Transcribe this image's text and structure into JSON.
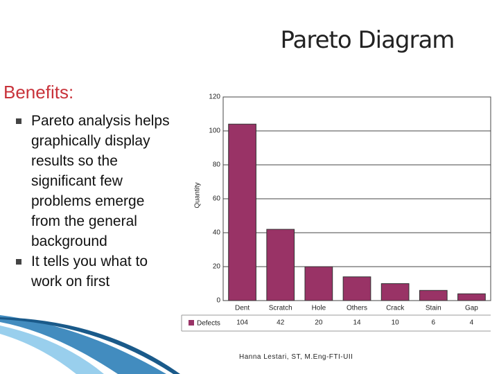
{
  "title": "Pareto Diagram",
  "heading": "Benefits:",
  "bullets": [
    "Pareto analysis helps graphically display results so the significant few problems emerge from the general background",
    "It tells you what to work on first"
  ],
  "footer": "Hanna Lestari, ST, M.Eng-FTI-UII",
  "chart_data": {
    "type": "bar",
    "y_label": "Quantity",
    "categories": [
      "Dent",
      "Scratch",
      "Hole",
      "Others",
      "Crack",
      "Stain",
      "Gap"
    ],
    "series": [
      {
        "name": "Defects",
        "color": "#993366",
        "values": [
          104,
          42,
          20,
          14,
          10,
          6,
          4
        ]
      }
    ],
    "ylim": [
      0,
      120
    ],
    "yticks": [
      0,
      20,
      40,
      60,
      80,
      100,
      120
    ],
    "grid": true
  }
}
